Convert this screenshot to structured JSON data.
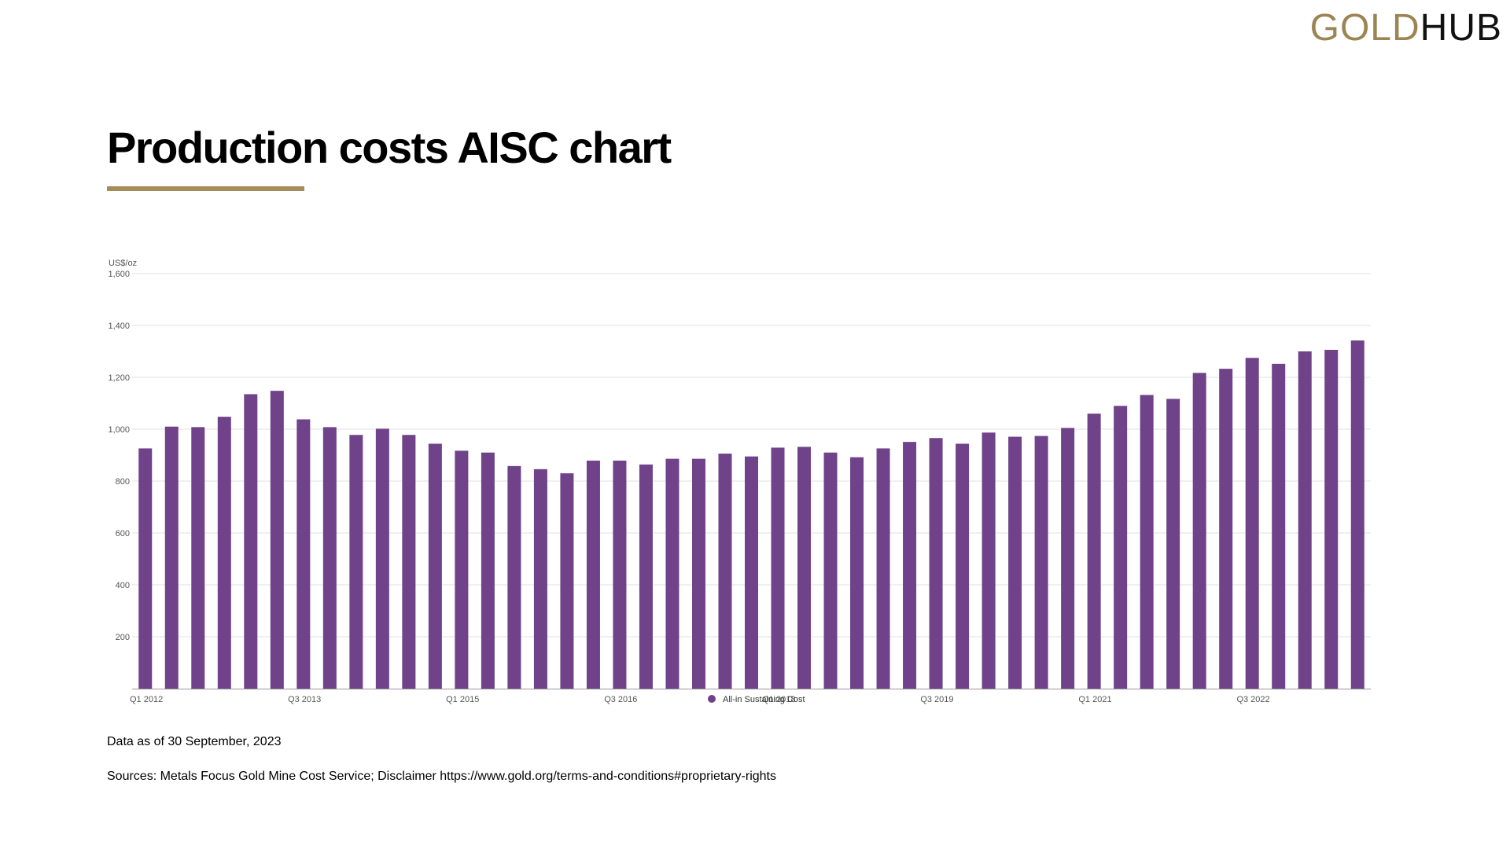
{
  "logo": {
    "part1": "GOLD",
    "part2": "HUB"
  },
  "page": {
    "title": "Production costs AISC chart",
    "data_as_of": "Data as of 30 September, 2023",
    "sources": "Sources: Metals Focus Gold Mine Cost Service; Disclaimer https://www.gold.org/terms-and-conditions#proprietary-rights"
  },
  "colors": {
    "bar": "#6f4289",
    "accent": "#a48d5b",
    "grid": "#e2e2e2"
  },
  "chart_data": {
    "type": "bar",
    "ylabel": "US$/oz",
    "ylim": [
      0,
      1600
    ],
    "yticks": [
      200,
      400,
      600,
      800,
      1000,
      1200,
      1400,
      1600
    ],
    "ytick_labels": [
      "200",
      "400",
      "600",
      "800",
      "1,000",
      "1,200",
      "1,400",
      "1,600"
    ],
    "xtick_labels": [
      {
        "index": 0,
        "label": "Q1 2012"
      },
      {
        "index": 6,
        "label": "Q3 2013"
      },
      {
        "index": 12,
        "label": "Q1 2015"
      },
      {
        "index": 18,
        "label": "Q3 2016"
      },
      {
        "index": 24,
        "label": "Q1 2018"
      },
      {
        "index": 30,
        "label": "Q3 2019"
      },
      {
        "index": 36,
        "label": "Q1 2021"
      },
      {
        "index": 42,
        "label": "Q3 2022"
      }
    ],
    "grid": true,
    "legend": {
      "position": "bottom-center",
      "entries": [
        "All-in Sustaining Cost"
      ]
    },
    "series": [
      {
        "name": "All-in Sustaining Cost",
        "values": [
          926,
          1010,
          1008,
          1048,
          1135,
          1148,
          1038,
          1008,
          978,
          1002,
          978,
          944,
          917,
          910,
          858,
          846,
          830,
          879,
          879,
          864,
          886,
          886,
          906,
          895,
          929,
          932,
          910,
          892,
          926,
          951,
          966,
          944,
          987,
          971,
          974,
          1005,
          1060,
          1090,
          1132,
          1117,
          1217,
          1233,
          1275,
          1252,
          1300,
          1306,
          1342
        ]
      }
    ]
  }
}
